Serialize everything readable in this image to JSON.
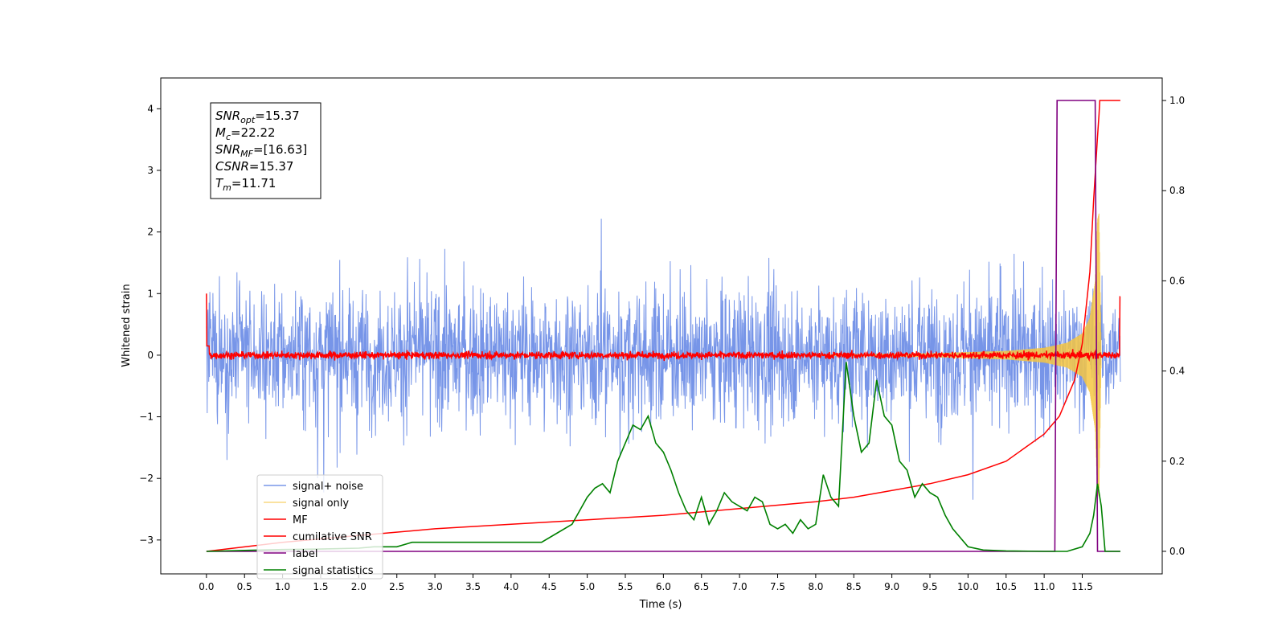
{
  "chart_data": {
    "type": "line",
    "xlabel": "Time (s)",
    "ylabel_left": "Whitened strain",
    "ylabel_right": "",
    "xlim": [
      -0.6,
      12.55
    ],
    "ylim_left": [
      -3.55,
      4.5
    ],
    "ylim_right": [
      -0.05,
      1.05
    ],
    "x_ticks": [
      "0.0",
      "0.5",
      "1.0",
      "1.5",
      "2.0",
      "2.5",
      "3.0",
      "3.5",
      "4.0",
      "4.5",
      "5.0",
      "5.5",
      "6.0",
      "6.5",
      "7.0",
      "7.5",
      "8.0",
      "8.5",
      "9.0",
      "9.5",
      "10.0",
      "10.5",
      "11.0",
      "11.5"
    ],
    "y_ticks_left": [
      "4",
      "3",
      "2",
      "1",
      "0",
      "−1",
      "−2",
      "−3"
    ],
    "y_ticks_right": [
      "1.0",
      "0.8",
      "0.6",
      "0.4",
      "0.2",
      "0.0"
    ],
    "grid": false,
    "legend_position": "lower-left",
    "colors": {
      "noise": "#6b8ce6",
      "signal": "#f5c542",
      "mf": "#ff0000",
      "csnr": "#ff0000",
      "label": "#800080",
      "stats": "#008000"
    },
    "series": [
      {
        "key": "noise",
        "name": "signal+ noise",
        "axis": "left",
        "note": "noise band roughly between -2.6 and 2.6 from x=0.0 to x=12.0"
      },
      {
        "key": "signal",
        "name": "signal only",
        "axis": "left",
        "envelope_x": [
          0,
          8,
          9.5,
          10.5,
          11.0,
          11.3,
          11.5,
          11.6,
          11.67,
          11.7,
          11.72,
          11.75
        ],
        "envelope_y": [
          0.002,
          0.01,
          0.03,
          0.07,
          0.12,
          0.2,
          0.35,
          0.6,
          1.2,
          2.2,
          2.3,
          0.0
        ]
      },
      {
        "key": "mf",
        "name": "MF",
        "axis": "left",
        "note": "fluctuates around 0.0, starts at 1.0 at x=0.0, rises to 0.95 at x=12.0"
      },
      {
        "key": "csnr",
        "name": "cumilative SNR",
        "axis": "right",
        "x": [
          0.0,
          1.0,
          2.0,
          3.0,
          4.0,
          5.0,
          6.0,
          7.0,
          8.0,
          8.5,
          9.0,
          9.5,
          10.0,
          10.5,
          11.0,
          11.2,
          11.4,
          11.5,
          11.6,
          11.65,
          11.7,
          11.72,
          11.73,
          11.75,
          12.0
        ],
        "y": [
          0.0,
          0.02,
          0.035,
          0.05,
          0.06,
          0.07,
          0.08,
          0.095,
          0.11,
          0.12,
          0.135,
          0.15,
          0.17,
          0.2,
          0.26,
          0.3,
          0.38,
          0.46,
          0.62,
          0.78,
          0.92,
          0.97,
          1.0,
          1.0,
          1.0
        ]
      },
      {
        "key": "label",
        "name": "label",
        "axis": "right",
        "x": [
          0.0,
          11.14,
          11.17,
          11.67,
          11.7,
          12.0
        ],
        "y": [
          0.0,
          0.0,
          1.0,
          1.0,
          0.0,
          0.0
        ]
      },
      {
        "key": "stats",
        "name": "signal statistics",
        "axis": "right",
        "x": [
          0.0,
          0.5,
          1.0,
          1.5,
          2.0,
          2.2,
          2.5,
          2.7,
          3.0,
          3.3,
          3.6,
          4.0,
          4.2,
          4.4,
          4.6,
          4.8,
          5.0,
          5.1,
          5.2,
          5.3,
          5.4,
          5.5,
          5.6,
          5.7,
          5.8,
          5.9,
          6.0,
          6.1,
          6.2,
          6.3,
          6.4,
          6.5,
          6.6,
          6.7,
          6.8,
          6.9,
          7.0,
          7.1,
          7.2,
          7.3,
          7.4,
          7.5,
          7.6,
          7.7,
          7.8,
          7.9,
          8.0,
          8.1,
          8.2,
          8.3,
          8.4,
          8.5,
          8.6,
          8.7,
          8.8,
          8.9,
          9.0,
          9.1,
          9.2,
          9.3,
          9.4,
          9.5,
          9.6,
          9.7,
          9.8,
          10.0,
          10.2,
          10.5,
          11.0,
          11.3,
          11.5,
          11.6,
          11.65,
          11.7,
          11.75,
          11.8,
          12.0
        ],
        "y": [
          0.0,
          0.002,
          0.004,
          0.005,
          0.007,
          0.01,
          0.01,
          0.02,
          0.02,
          0.02,
          0.02,
          0.02,
          0.02,
          0.02,
          0.04,
          0.06,
          0.12,
          0.14,
          0.15,
          0.13,
          0.2,
          0.24,
          0.28,
          0.27,
          0.3,
          0.24,
          0.22,
          0.18,
          0.13,
          0.09,
          0.07,
          0.12,
          0.06,
          0.09,
          0.13,
          0.11,
          0.1,
          0.09,
          0.12,
          0.11,
          0.06,
          0.05,
          0.06,
          0.04,
          0.07,
          0.05,
          0.06,
          0.17,
          0.12,
          0.1,
          0.42,
          0.3,
          0.22,
          0.24,
          0.38,
          0.3,
          0.28,
          0.2,
          0.18,
          0.12,
          0.15,
          0.13,
          0.12,
          0.08,
          0.05,
          0.01,
          0.003,
          0.001,
          0.0,
          0.0,
          0.01,
          0.04,
          0.08,
          0.15,
          0.1,
          0.0,
          0.0
        ]
      }
    ],
    "annotation": {
      "lines": [
        {
          "main": "SNR",
          "sub": "opt",
          "value": "=15.37"
        },
        {
          "main": "M",
          "sub": "c",
          "value": "=22.22"
        },
        {
          "main": "SNR",
          "sub": "MF",
          "value": "=[16.63]"
        },
        {
          "main": "CSNR",
          "sub": "",
          "value": "=15.37"
        },
        {
          "main": "T",
          "sub": "m",
          "value": "=11.71"
        }
      ]
    }
  }
}
